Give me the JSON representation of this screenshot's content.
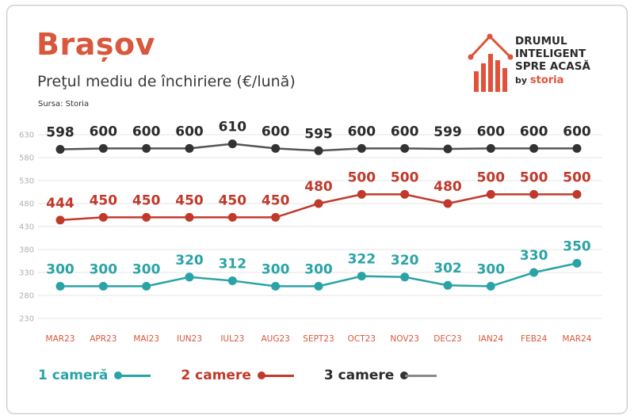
{
  "header": {
    "title": "Brașov",
    "subtitle": "Preţul mediu de închiriere (€/lună)",
    "source": "Sursa: Storia"
  },
  "logo": {
    "line1": "DRUMUL",
    "line2": "INTELIGENT",
    "line3": "SPRE ACASĂ",
    "by": "by",
    "brand": "storia",
    "icon": "house-bar-chart-icon",
    "color": "#e0523a"
  },
  "chart_data": {
    "type": "line",
    "title": "Preţul mediu de închiriere (€/lună)",
    "categories": [
      "MAR23",
      "APR23",
      "MAI23",
      "IUN23",
      "IUL23",
      "AUG23",
      "SEPT23",
      "OCT23",
      "NOV23",
      "DEC23",
      "IAN24",
      "FEB24",
      "MAR24"
    ],
    "y_ticks": [
      230,
      280,
      330,
      380,
      430,
      480,
      530,
      580,
      630
    ],
    "ylim": [
      230,
      630
    ],
    "grid": true,
    "legend_position": "bottom-left",
    "series": [
      {
        "name": "1 cameră",
        "color": "#2aa3a7",
        "values": [
          300,
          300,
          300,
          320,
          312,
          300,
          300,
          322,
          320,
          302,
          300,
          330,
          350
        ]
      },
      {
        "name": "2 camere",
        "color": "#c0392b",
        "values": [
          444,
          450,
          450,
          450,
          450,
          450,
          480,
          500,
          500,
          480,
          500,
          500,
          500
        ]
      },
      {
        "name": "3 camere",
        "color": "#555555",
        "dot_color": "#333333",
        "label_color": "#2b2b2b",
        "values": [
          598,
          600,
          600,
          600,
          610,
          600,
          595,
          600,
          600,
          599,
          600,
          600,
          600
        ]
      }
    ]
  }
}
